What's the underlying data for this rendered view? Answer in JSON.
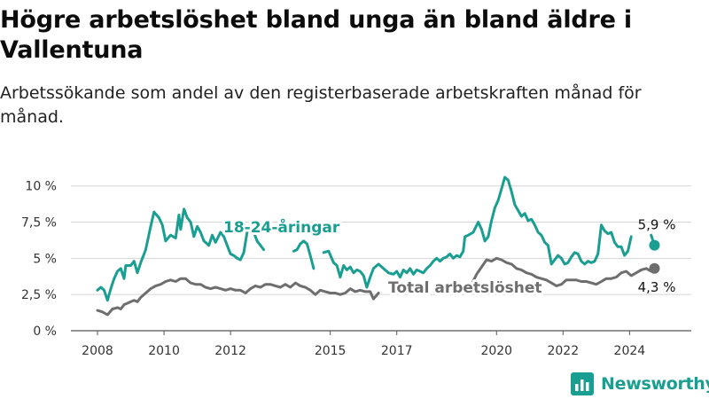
{
  "header": {
    "title": "Högre arbetslöshet bland unga än bland äldre i Vallentuna",
    "subtitle": "Arbetssökande som andel av den registerbaserade arbetskraften månad för månad."
  },
  "brand": {
    "name": "Newsworthy",
    "icon": "bar-chart-logo-icon",
    "color": "#1a9e92"
  },
  "chart_data": {
    "type": "line",
    "x_unit": "year",
    "xlim": [
      2008,
      2024.95
    ],
    "ylim": [
      0,
      10.9
    ],
    "y_ticks": [
      {
        "value": 0,
        "label": "0 %"
      },
      {
        "value": 2.5,
        "label": "2,5 %"
      },
      {
        "value": 5,
        "label": "5 %"
      },
      {
        "value": 7.5,
        "label": "7,5 %"
      },
      {
        "value": 10,
        "label": "10 %"
      }
    ],
    "x_ticks": [
      "2008",
      "2010",
      "2012",
      "2015",
      "2017",
      "2020",
      "2022",
      "2024"
    ],
    "grid": true,
    "series": [
      {
        "name": "18-24-åringar",
        "color": "#1a9e92",
        "end_label": "5,9 %",
        "points": [
          [
            2008.0,
            2.8
          ],
          [
            2008.1,
            3.0
          ],
          [
            2008.2,
            2.8
          ],
          [
            2008.3,
            2.1
          ],
          [
            2008.4,
            2.9
          ],
          [
            2008.5,
            3.6
          ],
          [
            2008.6,
            4.1
          ],
          [
            2008.7,
            4.3
          ],
          [
            2008.8,
            3.6
          ],
          [
            2008.85,
            4.5
          ],
          [
            2009.0,
            4.5
          ],
          [
            2009.1,
            4.8
          ],
          [
            2009.2,
            4.0
          ],
          [
            2009.3,
            4.7
          ],
          [
            2009.45,
            5.6
          ],
          [
            2009.6,
            7.2
          ],
          [
            2009.7,
            8.2
          ],
          [
            2009.85,
            7.8
          ],
          [
            2009.95,
            7.3
          ],
          [
            2010.05,
            6.2
          ],
          [
            2010.2,
            6.6
          ],
          [
            2010.35,
            6.4
          ],
          [
            2010.45,
            8.0
          ],
          [
            2010.5,
            7.0
          ],
          [
            2010.6,
            8.4
          ],
          [
            2010.7,
            7.8
          ],
          [
            2010.8,
            7.5
          ],
          [
            2010.9,
            6.5
          ],
          [
            2011.0,
            7.2
          ],
          [
            2011.1,
            6.8
          ],
          [
            2011.2,
            6.2
          ],
          [
            2011.35,
            5.9
          ],
          [
            2011.45,
            6.6
          ],
          [
            2011.55,
            6.1
          ],
          [
            2011.7,
            6.8
          ],
          [
            2011.8,
            6.5
          ],
          [
            2011.9,
            5.9
          ],
          [
            2012.0,
            5.3
          ],
          [
            2012.1,
            5.2
          ],
          [
            2012.2,
            5.0
          ],
          [
            2012.3,
            4.9
          ],
          [
            2012.4,
            5.4
          ],
          [
            2012.5,
            6.8
          ],
          [
            2012.6,
            7.3
          ],
          [
            2012.7,
            6.8
          ],
          [
            2012.8,
            6.2
          ],
          [
            2013.0,
            5.6
          ]
        ],
        "points2": [
          [
            2013.9,
            5.5
          ],
          [
            2014.0,
            5.6
          ],
          [
            2014.1,
            6.0
          ],
          [
            2014.2,
            6.2
          ],
          [
            2014.3,
            6.0
          ],
          [
            2014.4,
            5.2
          ],
          [
            2014.5,
            4.3
          ]
        ],
        "points3": [
          [
            2014.8,
            5.4
          ],
          [
            2014.95,
            5.5
          ],
          [
            2015.1,
            4.7
          ],
          [
            2015.2,
            4.5
          ],
          [
            2015.3,
            3.7
          ],
          [
            2015.4,
            4.5
          ],
          [
            2015.5,
            4.2
          ],
          [
            2015.6,
            4.4
          ],
          [
            2015.7,
            4.0
          ],
          [
            2015.8,
            4.2
          ],
          [
            2015.9,
            4.1
          ],
          [
            2016.0,
            3.8
          ],
          [
            2016.1,
            3.0
          ],
          [
            2016.2,
            3.7
          ],
          [
            2016.3,
            4.3
          ],
          [
            2016.45,
            4.6
          ],
          [
            2016.6,
            4.3
          ],
          [
            2016.75,
            4.0
          ],
          [
            2016.9,
            3.9
          ],
          [
            2017.0,
            4.1
          ],
          [
            2017.1,
            3.7
          ],
          [
            2017.2,
            4.2
          ],
          [
            2017.3,
            4.0
          ],
          [
            2017.4,
            4.3
          ],
          [
            2017.5,
            3.9
          ],
          [
            2017.6,
            4.2
          ],
          [
            2017.7,
            4.1
          ],
          [
            2017.8,
            4.0
          ],
          [
            2017.9,
            4.3
          ],
          [
            2018.0,
            4.5
          ],
          [
            2018.1,
            4.8
          ],
          [
            2018.2,
            5.0
          ],
          [
            2018.3,
            4.8
          ],
          [
            2018.4,
            5.0
          ],
          [
            2018.5,
            5.1
          ],
          [
            2018.6,
            5.3
          ],
          [
            2018.7,
            5.0
          ],
          [
            2018.8,
            5.2
          ],
          [
            2018.9,
            5.1
          ],
          [
            2019.0,
            5.5
          ],
          [
            2019.05,
            6.5
          ],
          [
            2019.15,
            6.6
          ],
          [
            2019.3,
            6.8
          ],
          [
            2019.45,
            7.5
          ],
          [
            2019.55,
            7.0
          ],
          [
            2019.65,
            6.2
          ],
          [
            2019.75,
            6.5
          ],
          [
            2019.85,
            7.6
          ],
          [
            2019.95,
            8.5
          ],
          [
            2020.05,
            9.0
          ],
          [
            2020.15,
            9.8
          ],
          [
            2020.25,
            10.6
          ],
          [
            2020.35,
            10.4
          ],
          [
            2020.45,
            9.6
          ],
          [
            2020.55,
            8.7
          ],
          [
            2020.65,
            8.3
          ],
          [
            2020.75,
            7.9
          ],
          [
            2020.85,
            8.1
          ],
          [
            2020.95,
            7.6
          ],
          [
            2021.05,
            7.7
          ],
          [
            2021.15,
            7.3
          ],
          [
            2021.25,
            6.8
          ],
          [
            2021.35,
            6.6
          ],
          [
            2021.45,
            6.1
          ],
          [
            2021.55,
            5.9
          ],
          [
            2021.65,
            4.6
          ],
          [
            2021.75,
            4.9
          ],
          [
            2021.85,
            5.2
          ],
          [
            2021.95,
            5.0
          ],
          [
            2022.05,
            4.6
          ],
          [
            2022.15,
            4.7
          ],
          [
            2022.25,
            5.1
          ],
          [
            2022.35,
            5.4
          ],
          [
            2022.45,
            5.3
          ],
          [
            2022.55,
            4.8
          ],
          [
            2022.65,
            4.6
          ],
          [
            2022.75,
            4.8
          ],
          [
            2022.85,
            4.7
          ],
          [
            2022.95,
            4.8
          ],
          [
            2023.05,
            5.3
          ],
          [
            2023.15,
            7.3
          ],
          [
            2023.25,
            6.9
          ],
          [
            2023.35,
            6.7
          ],
          [
            2023.45,
            6.8
          ],
          [
            2023.55,
            6.1
          ],
          [
            2023.65,
            5.8
          ],
          [
            2023.75,
            5.8
          ],
          [
            2023.85,
            5.2
          ],
          [
            2023.95,
            5.5
          ],
          [
            2024.05,
            6.5
          ]
        ],
        "points4": [
          [
            2024.65,
            6.6
          ],
          [
            2024.75,
            5.9
          ]
        ]
      },
      {
        "name": "Total arbetslöshet",
        "color": "#6e6e6e",
        "end_label": "4,3 %",
        "points": [
          [
            2008.0,
            1.4
          ],
          [
            2008.15,
            1.3
          ],
          [
            2008.3,
            1.1
          ],
          [
            2008.45,
            1.5
          ],
          [
            2008.6,
            1.6
          ],
          [
            2008.7,
            1.5
          ],
          [
            2008.8,
            1.8
          ],
          [
            2008.9,
            1.9
          ],
          [
            2009.0,
            2.0
          ],
          [
            2009.1,
            2.1
          ],
          [
            2009.2,
            2.0
          ],
          [
            2009.3,
            2.3
          ],
          [
            2009.45,
            2.6
          ],
          [
            2009.6,
            2.9
          ],
          [
            2009.75,
            3.1
          ],
          [
            2009.9,
            3.2
          ],
          [
            2010.05,
            3.4
          ],
          [
            2010.2,
            3.5
          ],
          [
            2010.35,
            3.4
          ],
          [
            2010.5,
            3.6
          ],
          [
            2010.65,
            3.6
          ],
          [
            2010.8,
            3.3
          ],
          [
            2010.95,
            3.2
          ],
          [
            2011.1,
            3.2
          ],
          [
            2011.25,
            3.0
          ],
          [
            2011.4,
            2.9
          ],
          [
            2011.55,
            3.0
          ],
          [
            2011.7,
            2.9
          ],
          [
            2011.85,
            2.8
          ],
          [
            2012.0,
            2.9
          ],
          [
            2012.15,
            2.8
          ],
          [
            2012.3,
            2.8
          ],
          [
            2012.45,
            2.6
          ],
          [
            2012.6,
            2.9
          ],
          [
            2012.75,
            3.1
          ],
          [
            2012.9,
            3.0
          ],
          [
            2013.05,
            3.2
          ],
          [
            2013.2,
            3.2
          ],
          [
            2013.35,
            3.1
          ],
          [
            2013.5,
            3.0
          ],
          [
            2013.65,
            3.2
          ],
          [
            2013.8,
            3.0
          ],
          [
            2013.95,
            3.3
          ],
          [
            2014.1,
            3.1
          ],
          [
            2014.25,
            3.0
          ],
          [
            2014.4,
            2.8
          ],
          [
            2014.55,
            2.5
          ],
          [
            2014.7,
            2.8
          ],
          [
            2014.85,
            2.7
          ],
          [
            2015.0,
            2.6
          ],
          [
            2015.15,
            2.6
          ],
          [
            2015.3,
            2.5
          ],
          [
            2015.45,
            2.6
          ],
          [
            2015.6,
            2.9
          ],
          [
            2015.75,
            2.7
          ],
          [
            2015.9,
            2.8
          ],
          [
            2016.05,
            2.7
          ],
          [
            2016.2,
            2.7
          ],
          [
            2016.3,
            2.2
          ],
          [
            2016.45,
            2.6
          ]
        ],
        "points2": [
          [
            2019.25,
            3.2
          ],
          [
            2019.4,
            3.9
          ],
          [
            2019.55,
            4.4
          ],
          [
            2019.7,
            4.9
          ],
          [
            2019.85,
            4.8
          ],
          [
            2020.0,
            5.0
          ],
          [
            2020.15,
            4.9
          ],
          [
            2020.3,
            4.7
          ],
          [
            2020.45,
            4.6
          ],
          [
            2020.6,
            4.3
          ],
          [
            2020.75,
            4.2
          ],
          [
            2020.9,
            4.0
          ],
          [
            2021.05,
            3.9
          ],
          [
            2021.2,
            3.7
          ],
          [
            2021.35,
            3.6
          ],
          [
            2021.5,
            3.5
          ],
          [
            2021.65,
            3.3
          ],
          [
            2021.8,
            3.1
          ],
          [
            2021.95,
            3.2
          ],
          [
            2022.1,
            3.5
          ],
          [
            2022.25,
            3.5
          ],
          [
            2022.4,
            3.5
          ],
          [
            2022.55,
            3.4
          ],
          [
            2022.7,
            3.4
          ],
          [
            2022.85,
            3.3
          ],
          [
            2023.0,
            3.2
          ],
          [
            2023.15,
            3.4
          ],
          [
            2023.3,
            3.6
          ],
          [
            2023.45,
            3.6
          ],
          [
            2023.6,
            3.7
          ],
          [
            2023.75,
            4.0
          ],
          [
            2023.9,
            4.1
          ],
          [
            2024.05,
            3.8
          ],
          [
            2024.2,
            4.0
          ],
          [
            2024.35,
            4.2
          ],
          [
            2024.5,
            4.3
          ],
          [
            2024.65,
            4.1
          ],
          [
            2024.75,
            4.3
          ]
        ]
      }
    ]
  }
}
